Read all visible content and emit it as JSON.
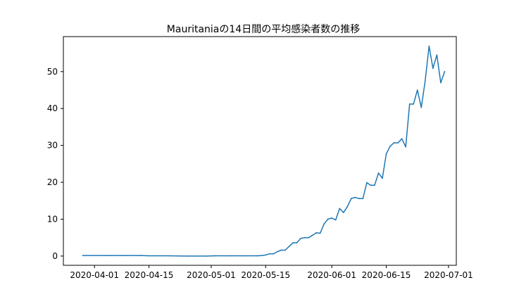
{
  "chart_data": {
    "type": "line",
    "title": "Mauritaniaの14日間の平均感染者数の推移",
    "xlabel": "",
    "ylabel": "",
    "xlim": [
      "2020-03-24",
      "2020-07-03"
    ],
    "ylim": [
      -2.5,
      59.5
    ],
    "x_ticks": [
      "2020-04-01",
      "2020-04-15",
      "2020-05-01",
      "2020-05-15",
      "2020-06-01",
      "2020-06-15",
      "2020-07-01"
    ],
    "y_ticks": [
      0,
      10,
      20,
      30,
      40,
      50
    ],
    "grid": false,
    "series": [
      {
        "color": "#1f77b4",
        "points": [
          [
            "2020-03-29",
            0.14
          ],
          [
            "2020-04-04",
            0.14
          ],
          [
            "2020-04-09",
            0.14
          ],
          [
            "2020-04-13",
            0.14
          ],
          [
            "2020-04-15",
            0.07
          ],
          [
            "2020-04-20",
            0.07
          ],
          [
            "2020-04-25",
            0.0
          ],
          [
            "2020-04-30",
            0.0
          ],
          [
            "2020-05-02",
            0.07
          ],
          [
            "2020-05-06",
            0.07
          ],
          [
            "2020-05-10",
            0.07
          ],
          [
            "2020-05-13",
            0.07
          ],
          [
            "2020-05-14",
            0.14
          ],
          [
            "2020-05-15",
            0.3
          ],
          [
            "2020-05-16",
            0.6
          ],
          [
            "2020-05-17",
            0.6
          ],
          [
            "2020-05-18",
            1.2
          ],
          [
            "2020-05-19",
            1.6
          ],
          [
            "2020-05-20",
            1.6
          ],
          [
            "2020-05-21",
            2.6
          ],
          [
            "2020-05-22",
            3.6
          ],
          [
            "2020-05-23",
            3.6
          ],
          [
            "2020-05-24",
            4.8
          ],
          [
            "2020-05-25",
            5.0
          ],
          [
            "2020-05-26",
            5.0
          ],
          [
            "2020-05-27",
            5.6
          ],
          [
            "2020-05-28",
            6.3
          ],
          [
            "2020-05-29",
            6.2
          ],
          [
            "2020-05-30",
            8.7
          ],
          [
            "2020-05-31",
            10.0
          ],
          [
            "2020-06-01",
            10.3
          ],
          [
            "2020-06-02",
            9.8
          ],
          [
            "2020-06-03",
            12.9
          ],
          [
            "2020-06-04",
            11.8
          ],
          [
            "2020-06-05",
            13.4
          ],
          [
            "2020-06-06",
            15.6
          ],
          [
            "2020-06-07",
            15.9
          ],
          [
            "2020-06-08",
            15.6
          ],
          [
            "2020-06-09",
            15.6
          ],
          [
            "2020-06-10",
            19.9
          ],
          [
            "2020-06-11",
            19.2
          ],
          [
            "2020-06-12",
            19.2
          ],
          [
            "2020-06-13",
            22.5
          ],
          [
            "2020-06-14",
            21.1
          ],
          [
            "2020-06-15",
            27.7
          ],
          [
            "2020-06-16",
            29.8
          ],
          [
            "2020-06-17",
            30.7
          ],
          [
            "2020-06-18",
            30.7
          ],
          [
            "2020-06-19",
            31.8
          ],
          [
            "2020-06-20",
            29.6
          ],
          [
            "2020-06-21",
            41.2
          ],
          [
            "2020-06-22",
            41.2
          ],
          [
            "2020-06-23",
            45.0
          ],
          [
            "2020-06-24",
            40.3
          ],
          [
            "2020-06-25",
            47.5
          ],
          [
            "2020-06-26",
            56.9
          ],
          [
            "2020-06-27",
            50.9
          ],
          [
            "2020-06-28",
            54.5
          ],
          [
            "2020-06-29",
            47.0
          ],
          [
            "2020-06-30",
            50.0
          ]
        ]
      }
    ]
  }
}
